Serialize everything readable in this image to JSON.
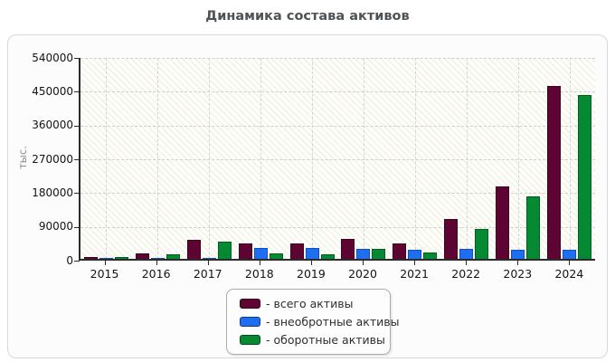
{
  "chart_data": {
    "type": "bar",
    "title": "Динамика состава активов",
    "ylabel": "тыс.",
    "xlabel": "",
    "categories": [
      "2015",
      "2016",
      "2017",
      "2018",
      "2019",
      "2020",
      "2021",
      "2022",
      "2023",
      "2024"
    ],
    "series": [
      {
        "name": "всего активы",
        "color": "#5e0433",
        "border_color": "#3f0222",
        "values": [
          6000,
          14000,
          50000,
          42000,
          40000,
          53000,
          42000,
          105000,
          192000,
          460000
        ]
      },
      {
        "name": "внеобротные активы",
        "color": "#1e6ef0",
        "border_color": "#0f4fc0",
        "values": [
          2000,
          3000,
          3000,
          28000,
          28000,
          27000,
          25000,
          26000,
          25000,
          24000
        ]
      },
      {
        "name": "оборотные активы",
        "color": "#058a33",
        "border_color": "#035e23",
        "values": [
          4000,
          11000,
          47000,
          14000,
          12000,
          26000,
          17000,
          79000,
          167000,
          436000
        ]
      }
    ],
    "ylim": [
      0,
      540000
    ],
    "yticks": [
      0,
      90000,
      180000,
      270000,
      360000,
      450000,
      540000
    ],
    "grid": "dashed horizontal and vertical",
    "plot_background": "white with pale-yellow diagonal hatch",
    "legend_position": "bottom-center",
    "legend_labels": [
      "- всего активы",
      "- внеобротные активы",
      "- оборотные активы"
    ]
  }
}
